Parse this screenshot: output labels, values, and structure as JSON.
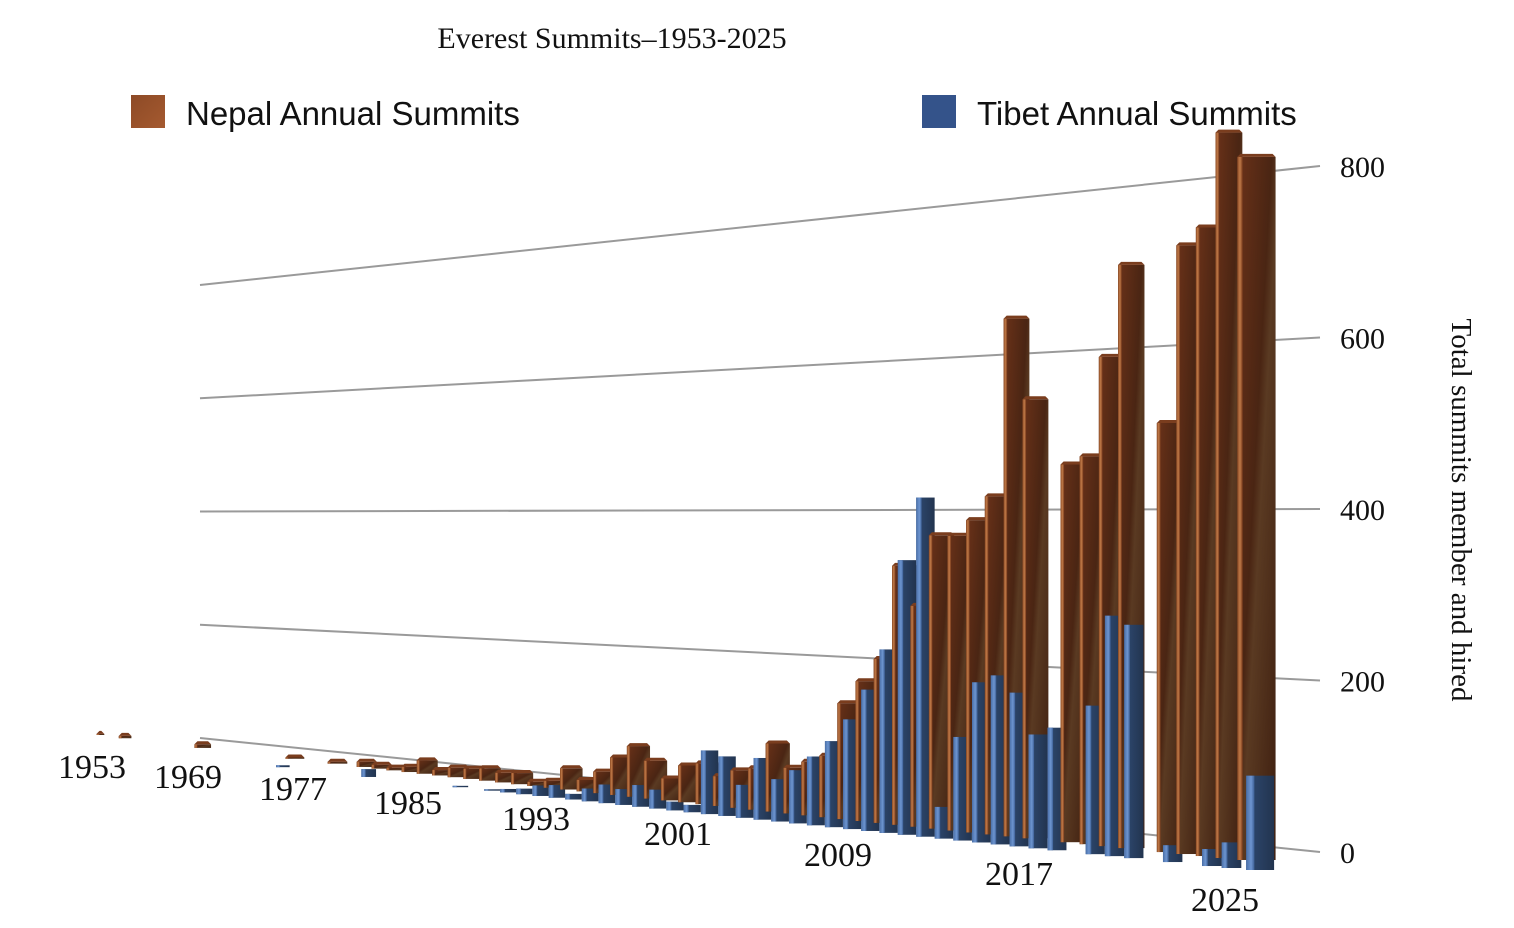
{
  "chart_data": {
    "type": "bar",
    "title": "Everest Summits–1953-2025",
    "xlabel": "",
    "ylabel": "Total summits member and hired",
    "ylim": [
      0,
      800
    ],
    "yticks": [
      "0",
      "200",
      "400",
      "600",
      "800"
    ],
    "ytick_values": [
      0,
      200,
      400,
      600,
      800
    ],
    "xtick_labels": [
      "1953",
      "1969",
      "1977",
      "1985",
      "1993",
      "2001",
      "2009",
      "2017",
      "2025"
    ],
    "legend_position": "top",
    "grid": true,
    "colors": {
      "nepal": "#5a2a14",
      "nepal_edge": "#b0683a",
      "tibet": "#2b3f60",
      "tibet_edge": "#5a82c0"
    },
    "categories": [
      1953,
      1954,
      1955,
      1956,
      1957,
      1958,
      1959,
      1960,
      1961,
      1962,
      1963,
      1964,
      1965,
      1966,
      1967,
      1968,
      1969,
      1970,
      1971,
      1972,
      1973,
      1974,
      1975,
      1976,
      1977,
      1978,
      1979,
      1980,
      1981,
      1982,
      1983,
      1984,
      1985,
      1986,
      1987,
      1988,
      1989,
      1990,
      1991,
      1992,
      1993,
      1994,
      1995,
      1996,
      1997,
      1998,
      1999,
      2000,
      2001,
      2002,
      2003,
      2004,
      2005,
      2006,
      2007,
      2008,
      2009,
      2010,
      2011,
      2012,
      2013,
      2014,
      2015,
      2016,
      2017,
      2018,
      2019,
      2020,
      2021,
      2022,
      2023,
      2024,
      2025
    ],
    "series": [
      {
        "name": "Nepal Annual Summits",
        "values": [
          2,
          0,
          0,
          4,
          0,
          0,
          0,
          0,
          0,
          0,
          6,
          0,
          0,
          0,
          0,
          0,
          0,
          2,
          0,
          0,
          3,
          0,
          8,
          6,
          4,
          8,
          20,
          8,
          14,
          15,
          18,
          14,
          16,
          6,
          10,
          30,
          16,
          30,
          52,
          70,
          52,
          30,
          50,
          55,
          40,
          50,
          55,
          90,
          60,
          70,
          80,
          150,
          180,
          210,
          330,
          280,
          370,
          370,
          390,
          420,
          640,
          540,
          0,
          460,
          470,
          590,
          700,
          0,
          510,
          720,
          740,
          850,
          820
        ]
      },
      {
        "name": "Tibet Annual Summits",
        "values": [
          0,
          0,
          0,
          0,
          0,
          0,
          0,
          0,
          0,
          0,
          0,
          0,
          0,
          0,
          0,
          0,
          3,
          0,
          0,
          0,
          0,
          0,
          12,
          0,
          0,
          0,
          0,
          0,
          2,
          0,
          2,
          5,
          8,
          15,
          18,
          8,
          18,
          26,
          22,
          30,
          26,
          12,
          10,
          86,
          80,
          44,
          82,
          56,
          70,
          90,
          112,
          142,
          182,
          235,
          350,
          430,
          40,
          130,
          200,
          210,
          190,
          140,
          150,
          0,
          180,
          290,
          280,
          0,
          20,
          0,
          20,
          30,
          110
        ]
      }
    ]
  }
}
